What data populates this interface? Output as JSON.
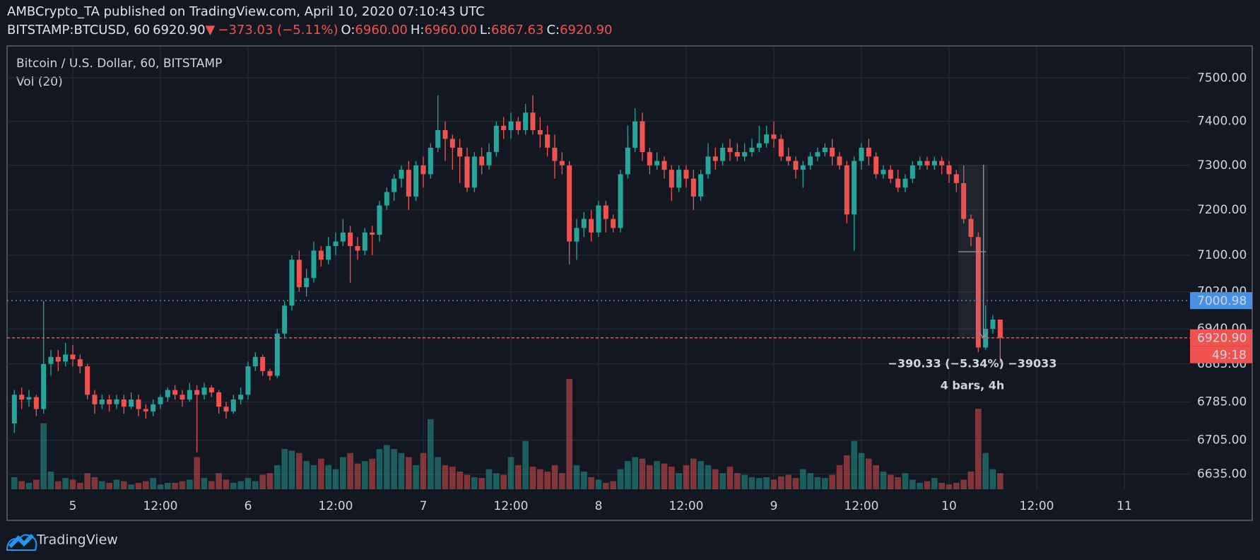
{
  "header": {
    "title": "AMBCrypto_TA published on TradingView.com, April 10, 2020 07:10:43 UTC",
    "symbol": "BITSTAMP:BTCUSD, 60",
    "last": "6920.90",
    "arrow": "▼",
    "change": "−373.03 (−5.11%)",
    "ohlc": [
      {
        "label": "O:",
        "value": "6960.00"
      },
      {
        "label": "H:",
        "value": "6960.00"
      },
      {
        "label": "L:",
        "value": "6867.63"
      },
      {
        "label": "C:",
        "value": "6920.90"
      }
    ]
  },
  "chart_data": {
    "type": "candlestick",
    "title": "Bitcoin / U.S. Dollar, 60, BITSTAMP",
    "volume_label": "Vol (20)",
    "log": true,
    "grid": true,
    "up_color": "#26a69a",
    "down_color": "#ef5350",
    "x": [
      "Apr 4 16:00",
      "Apr 4 17:00",
      "Apr 4 18:00",
      "Apr 4 19:00",
      "Apr 4 20:00",
      "Apr 4 21:00",
      "Apr 4 22:00",
      "Apr 4 23:00",
      "Apr 5 00:00",
      "Apr 5 01:00",
      "Apr 5 02:00",
      "Apr 5 03:00",
      "Apr 5 04:00",
      "Apr 5 05:00",
      "Apr 5 06:00",
      "Apr 5 07:00",
      "Apr 5 08:00",
      "Apr 5 09:00",
      "Apr 5 10:00",
      "Apr 5 11:00",
      "Apr 5 12:00",
      "Apr 5 13:00",
      "Apr 5 14:00",
      "Apr 5 15:00",
      "Apr 5 16:00",
      "Apr 5 17:00",
      "Apr 5 18:00",
      "Apr 5 19:00",
      "Apr 5 20:00",
      "Apr 5 21:00",
      "Apr 5 22:00",
      "Apr 5 23:00",
      "Apr 6 00:00",
      "Apr 6 01:00",
      "Apr 6 02:00",
      "Apr 6 03:00",
      "Apr 6 04:00",
      "Apr 6 05:00",
      "Apr 6 06:00",
      "Apr 6 07:00",
      "Apr 6 08:00",
      "Apr 6 09:00",
      "Apr 6 10:00",
      "Apr 6 11:00",
      "Apr 6 12:00",
      "Apr 6 13:00",
      "Apr 6 14:00",
      "Apr 6 15:00",
      "Apr 6 16:00",
      "Apr 6 17:00",
      "Apr 6 18:00",
      "Apr 6 19:00",
      "Apr 6 20:00",
      "Apr 6 21:00",
      "Apr 6 22:00",
      "Apr 6 23:00",
      "Apr 7 00:00",
      "Apr 7 01:00",
      "Apr 7 02:00",
      "Apr 7 03:00",
      "Apr 7 04:00",
      "Apr 7 05:00",
      "Apr 7 06:00",
      "Apr 7 07:00",
      "Apr 7 08:00",
      "Apr 7 09:00",
      "Apr 7 10:00",
      "Apr 7 11:00",
      "Apr 7 12:00",
      "Apr 7 13:00",
      "Apr 7 14:00",
      "Apr 7 15:00",
      "Apr 7 16:00",
      "Apr 7 17:00",
      "Apr 7 18:00",
      "Apr 7 19:00",
      "Apr 7 20:00",
      "Apr 7 21:00",
      "Apr 7 22:00",
      "Apr 7 23:00",
      "Apr 8 00:00",
      "Apr 8 01:00",
      "Apr 8 02:00",
      "Apr 8 03:00",
      "Apr 8 04:00",
      "Apr 8 05:00",
      "Apr 8 06:00",
      "Apr 8 07:00",
      "Apr 8 08:00",
      "Apr 8 09:00",
      "Apr 8 10:00",
      "Apr 8 11:00",
      "Apr 8 12:00",
      "Apr 8 13:00",
      "Apr 8 14:00",
      "Apr 8 15:00",
      "Apr 8 16:00",
      "Apr 8 17:00",
      "Apr 8 18:00",
      "Apr 8 19:00",
      "Apr 8 20:00",
      "Apr 8 21:00",
      "Apr 8 22:00",
      "Apr 8 23:00",
      "Apr 9 00:00",
      "Apr 9 01:00",
      "Apr 9 02:00",
      "Apr 9 03:00",
      "Apr 9 04:00",
      "Apr 9 05:00",
      "Apr 9 06:00",
      "Apr 9 07:00",
      "Apr 9 08:00",
      "Apr 9 09:00",
      "Apr 9 10:00",
      "Apr 9 11:00",
      "Apr 9 12:00",
      "Apr 9 13:00",
      "Apr 9 14:00",
      "Apr 9 15:00",
      "Apr 9 16:00",
      "Apr 9 17:00",
      "Apr 9 18:00",
      "Apr 9 19:00",
      "Apr 9 20:00",
      "Apr 9 21:00",
      "Apr 9 22:00",
      "Apr 9 23:00",
      "Apr 10 00:00",
      "Apr 10 01:00",
      "Apr 10 02:00",
      "Apr 10 03:00",
      "Apr 10 04:00",
      "Apr 10 05:00",
      "Apr 10 06:00",
      "Apr 10 07:00"
    ],
    "open": [
      6740,
      6800,
      6790,
      6795,
      6770,
      6865,
      6880,
      6870,
      6885,
      6875,
      6860,
      6800,
      6780,
      6790,
      6780,
      6790,
      6775,
      6790,
      6770,
      6765,
      6780,
      6795,
      6810,
      6800,
      6790,
      6810,
      6800,
      6815,
      6805,
      6775,
      6765,
      6790,
      6800,
      6860,
      6880,
      6850,
      6840,
      6930,
      6990,
      7090,
      7030,
      7050,
      7110,
      7090,
      7120,
      7130,
      7150,
      7120,
      7110,
      7150,
      7145,
      7210,
      7240,
      7270,
      7290,
      7230,
      7300,
      7280,
      7340,
      7380,
      7360,
      7340,
      7320,
      7250,
      7320,
      7300,
      7330,
      7390,
      7380,
      7400,
      7380,
      7420,
      7380,
      7370,
      7340,
      7310,
      7300,
      7130,
      7160,
      7180,
      7150,
      7210,
      7180,
      7160,
      7280,
      7340,
      7400,
      7330,
      7300,
      7310,
      7290,
      7250,
      7290,
      7270,
      7230,
      7280,
      7320,
      7310,
      7340,
      7330,
      7320,
      7330,
      7340,
      7350,
      7370,
      7360,
      7320,
      7310,
      7290,
      7300,
      7320,
      7330,
      7340,
      7320,
      7300,
      7190,
      7310,
      7340,
      7320,
      7280,
      7290,
      7270,
      7250,
      7270,
      7300,
      7310,
      7300,
      7310,
      7300,
      7280,
      7260,
      7180,
      7140,
      6900,
      6940,
      6960
    ],
    "high": [
      6810,
      6815,
      6810,
      6800,
      7000,
      6895,
      6895,
      6910,
      6905,
      6885,
      6865,
      6810,
      6800,
      6800,
      6800,
      6800,
      6805,
      6800,
      6780,
      6790,
      6800,
      6815,
      6820,
      6810,
      6825,
      6820,
      6825,
      6820,
      6810,
      6785,
      6800,
      6815,
      6870,
      6890,
      6885,
      6855,
      6940,
      7000,
      7100,
      7110,
      7070,
      7130,
      7120,
      7140,
      7150,
      7180,
      7165,
      7140,
      7160,
      7165,
      7220,
      7250,
      7280,
      7300,
      7310,
      7310,
      7320,
      7350,
      7460,
      7400,
      7370,
      7360,
      7340,
      7330,
      7340,
      7350,
      7400,
      7410,
      7420,
      7410,
      7440,
      7460,
      7410,
      7390,
      7370,
      7330,
      7310,
      7180,
      7195,
      7200,
      7220,
      7220,
      7190,
      7290,
      7390,
      7430,
      7420,
      7340,
      7330,
      7320,
      7300,
      7300,
      7300,
      7290,
      7290,
      7350,
      7340,
      7350,
      7360,
      7350,
      7350,
      7360,
      7390,
      7390,
      7400,
      7370,
      7340,
      7320,
      7310,
      7330,
      7340,
      7350,
      7360,
      7330,
      7310,
      7320,
      7350,
      7360,
      7330,
      7300,
      7300,
      7290,
      7280,
      7310,
      7320,
      7320,
      7320,
      7320,
      7310,
      7290,
      7300,
      7190,
      7150,
      6990,
      6970,
      6960
    ],
    "low": [
      6720,
      6770,
      6775,
      6755,
      6760,
      6840,
      6850,
      6860,
      6860,
      6845,
      6790,
      6760,
      6770,
      6765,
      6770,
      6760,
      6770,
      6755,
      6750,
      6755,
      6770,
      6785,
      6790,
      6775,
      6785,
      6680,
      6790,
      6795,
      6760,
      6750,
      6760,
      6780,
      6790,
      6850,
      6840,
      6830,
      6835,
      6920,
      6980,
      7020,
      7010,
      7040,
      7075,
      7080,
      7100,
      7120,
      7040,
      7090,
      7100,
      7100,
      7130,
      7200,
      7220,
      7250,
      7200,
      7220,
      7250,
      7270,
      7330,
      7310,
      7290,
      7260,
      7240,
      7240,
      7280,
      7290,
      7320,
      7360,
      7360,
      7370,
      7370,
      7370,
      7340,
      7320,
      7270,
      7280,
      7080,
      7090,
      7140,
      7130,
      7140,
      7150,
      7150,
      7150,
      7270,
      7330,
      7310,
      7280,
      7290,
      7270,
      7220,
      7240,
      7250,
      7200,
      7220,
      7270,
      7290,
      7300,
      7310,
      7310,
      7310,
      7320,
      7330,
      7340,
      7340,
      7310,
      7300,
      7270,
      7250,
      7290,
      7310,
      7320,
      7300,
      7290,
      7170,
      7110,
      7290,
      7300,
      7270,
      7270,
      7260,
      7240,
      7240,
      7260,
      7290,
      7290,
      7290,
      7280,
      7260,
      7240,
      7170,
      7120,
      6890,
      6895,
      6930,
      6867.63
    ],
    "close": [
      6800,
      6790,
      6795,
      6770,
      6865,
      6880,
      6870,
      6885,
      6875,
      6860,
      6800,
      6780,
      6790,
      6780,
      6790,
      6775,
      6790,
      6770,
      6765,
      6780,
      6795,
      6810,
      6800,
      6790,
      6810,
      6800,
      6815,
      6805,
      6775,
      6765,
      6790,
      6800,
      6860,
      6880,
      6850,
      6840,
      6930,
      6990,
      7090,
      7030,
      7050,
      7110,
      7090,
      7120,
      7130,
      7150,
      7120,
      7110,
      7150,
      7145,
      7210,
      7240,
      7270,
      7290,
      7230,
      7300,
      7280,
      7340,
      7380,
      7360,
      7340,
      7320,
      7250,
      7320,
      7300,
      7330,
      7390,
      7380,
      7400,
      7380,
      7420,
      7380,
      7370,
      7340,
      7310,
      7300,
      7130,
      7160,
      7180,
      7150,
      7210,
      7180,
      7160,
      7280,
      7340,
      7400,
      7330,
      7300,
      7310,
      7290,
      7250,
      7290,
      7270,
      7230,
      7280,
      7320,
      7310,
      7340,
      7330,
      7320,
      7330,
      7340,
      7350,
      7370,
      7360,
      7320,
      7310,
      7290,
      7300,
      7320,
      7330,
      7340,
      7320,
      7300,
      7190,
      7310,
      7340,
      7320,
      7280,
      7290,
      7270,
      7250,
      7270,
      7300,
      7310,
      7300,
      7310,
      7300,
      7280,
      7260,
      7180,
      7140,
      6900,
      6940,
      6960,
      6920.9
    ],
    "volume": [
      15,
      10,
      8,
      12,
      82,
      22,
      10,
      14,
      12,
      8,
      20,
      15,
      10,
      8,
      12,
      10,
      6,
      8,
      10,
      14,
      6,
      8,
      8,
      10,
      12,
      40,
      14,
      10,
      20,
      12,
      8,
      10,
      14,
      10,
      18,
      20,
      30,
      50,
      48,
      45,
      35,
      30,
      38,
      30,
      25,
      40,
      45,
      32,
      35,
      38,
      50,
      55,
      50,
      45,
      40,
      30,
      45,
      87,
      40,
      30,
      28,
      22,
      18,
      15,
      14,
      25,
      20,
      18,
      40,
      30,
      60,
      28,
      25,
      22,
      30,
      20,
      137,
      30,
      22,
      15,
      12,
      8,
      10,
      25,
      35,
      40,
      38,
      30,
      35,
      32,
      28,
      20,
      30,
      38,
      35,
      30,
      25,
      20,
      28,
      20,
      18,
      15,
      14,
      15,
      12,
      16,
      18,
      14,
      25,
      20,
      15,
      14,
      18,
      30,
      42,
      60,
      45,
      38,
      30,
      22,
      18,
      15,
      20,
      12,
      8,
      10,
      14,
      8,
      6,
      8,
      12,
      22,
      100,
      45,
      25,
      20
    ],
    "xlim": [
      "Apr 4 15:00",
      "Apr 11 09:00"
    ],
    "xticks": [
      {
        "value": "Apr 5 00:00",
        "label": "5"
      },
      {
        "value": "Apr 5 12:00",
        "label": "12:00"
      },
      {
        "value": "Apr 6 00:00",
        "label": "6"
      },
      {
        "value": "Apr 6 12:00",
        "label": "12:00"
      },
      {
        "value": "Apr 7 00:00",
        "label": "7"
      },
      {
        "value": "Apr 7 12:00",
        "label": "12:00"
      },
      {
        "value": "Apr 8 00:00",
        "label": "8"
      },
      {
        "value": "Apr 8 12:00",
        "label": "12:00"
      },
      {
        "value": "Apr 9 00:00",
        "label": "9"
      },
      {
        "value": "Apr 9 12:00",
        "label": "12:00"
      },
      {
        "value": "Apr 10 00:00",
        "label": "10"
      },
      {
        "value": "Apr 10 12:00",
        "label": "12:00"
      },
      {
        "value": "Apr 11 00:00",
        "label": "11"
      }
    ],
    "ylim": [
      6604,
      7573
    ],
    "yticks": [
      {
        "value": 6635,
        "label": "6635.00"
      },
      {
        "value": 6705,
        "label": "6705.00"
      },
      {
        "value": 6785,
        "label": "6785.00"
      },
      {
        "value": 6865,
        "label": "6865.00"
      },
      {
        "value": 6940,
        "label": "6940.00"
      },
      {
        "value": 7020,
        "label": "7020.00"
      },
      {
        "value": 7100,
        "label": "7100.00"
      },
      {
        "value": 7200,
        "label": "7200.00"
      },
      {
        "value": 7300,
        "label": "7300.00"
      },
      {
        "value": 7400,
        "label": "7400.00"
      },
      {
        "value": 7500,
        "label": "7500.00"
      }
    ],
    "price_lines": [
      {
        "value": 7000.98,
        "label": "7000.98",
        "color": "#4a90e2"
      },
      {
        "value": 6920.9,
        "label": "6920.90",
        "color": "#ef5350"
      }
    ],
    "countdown": "49:18",
    "annotations": [
      "−390.33 (−5.34%) −39033",
      "4 bars, 4h"
    ]
  },
  "footer": {
    "brand": "TradingView"
  }
}
